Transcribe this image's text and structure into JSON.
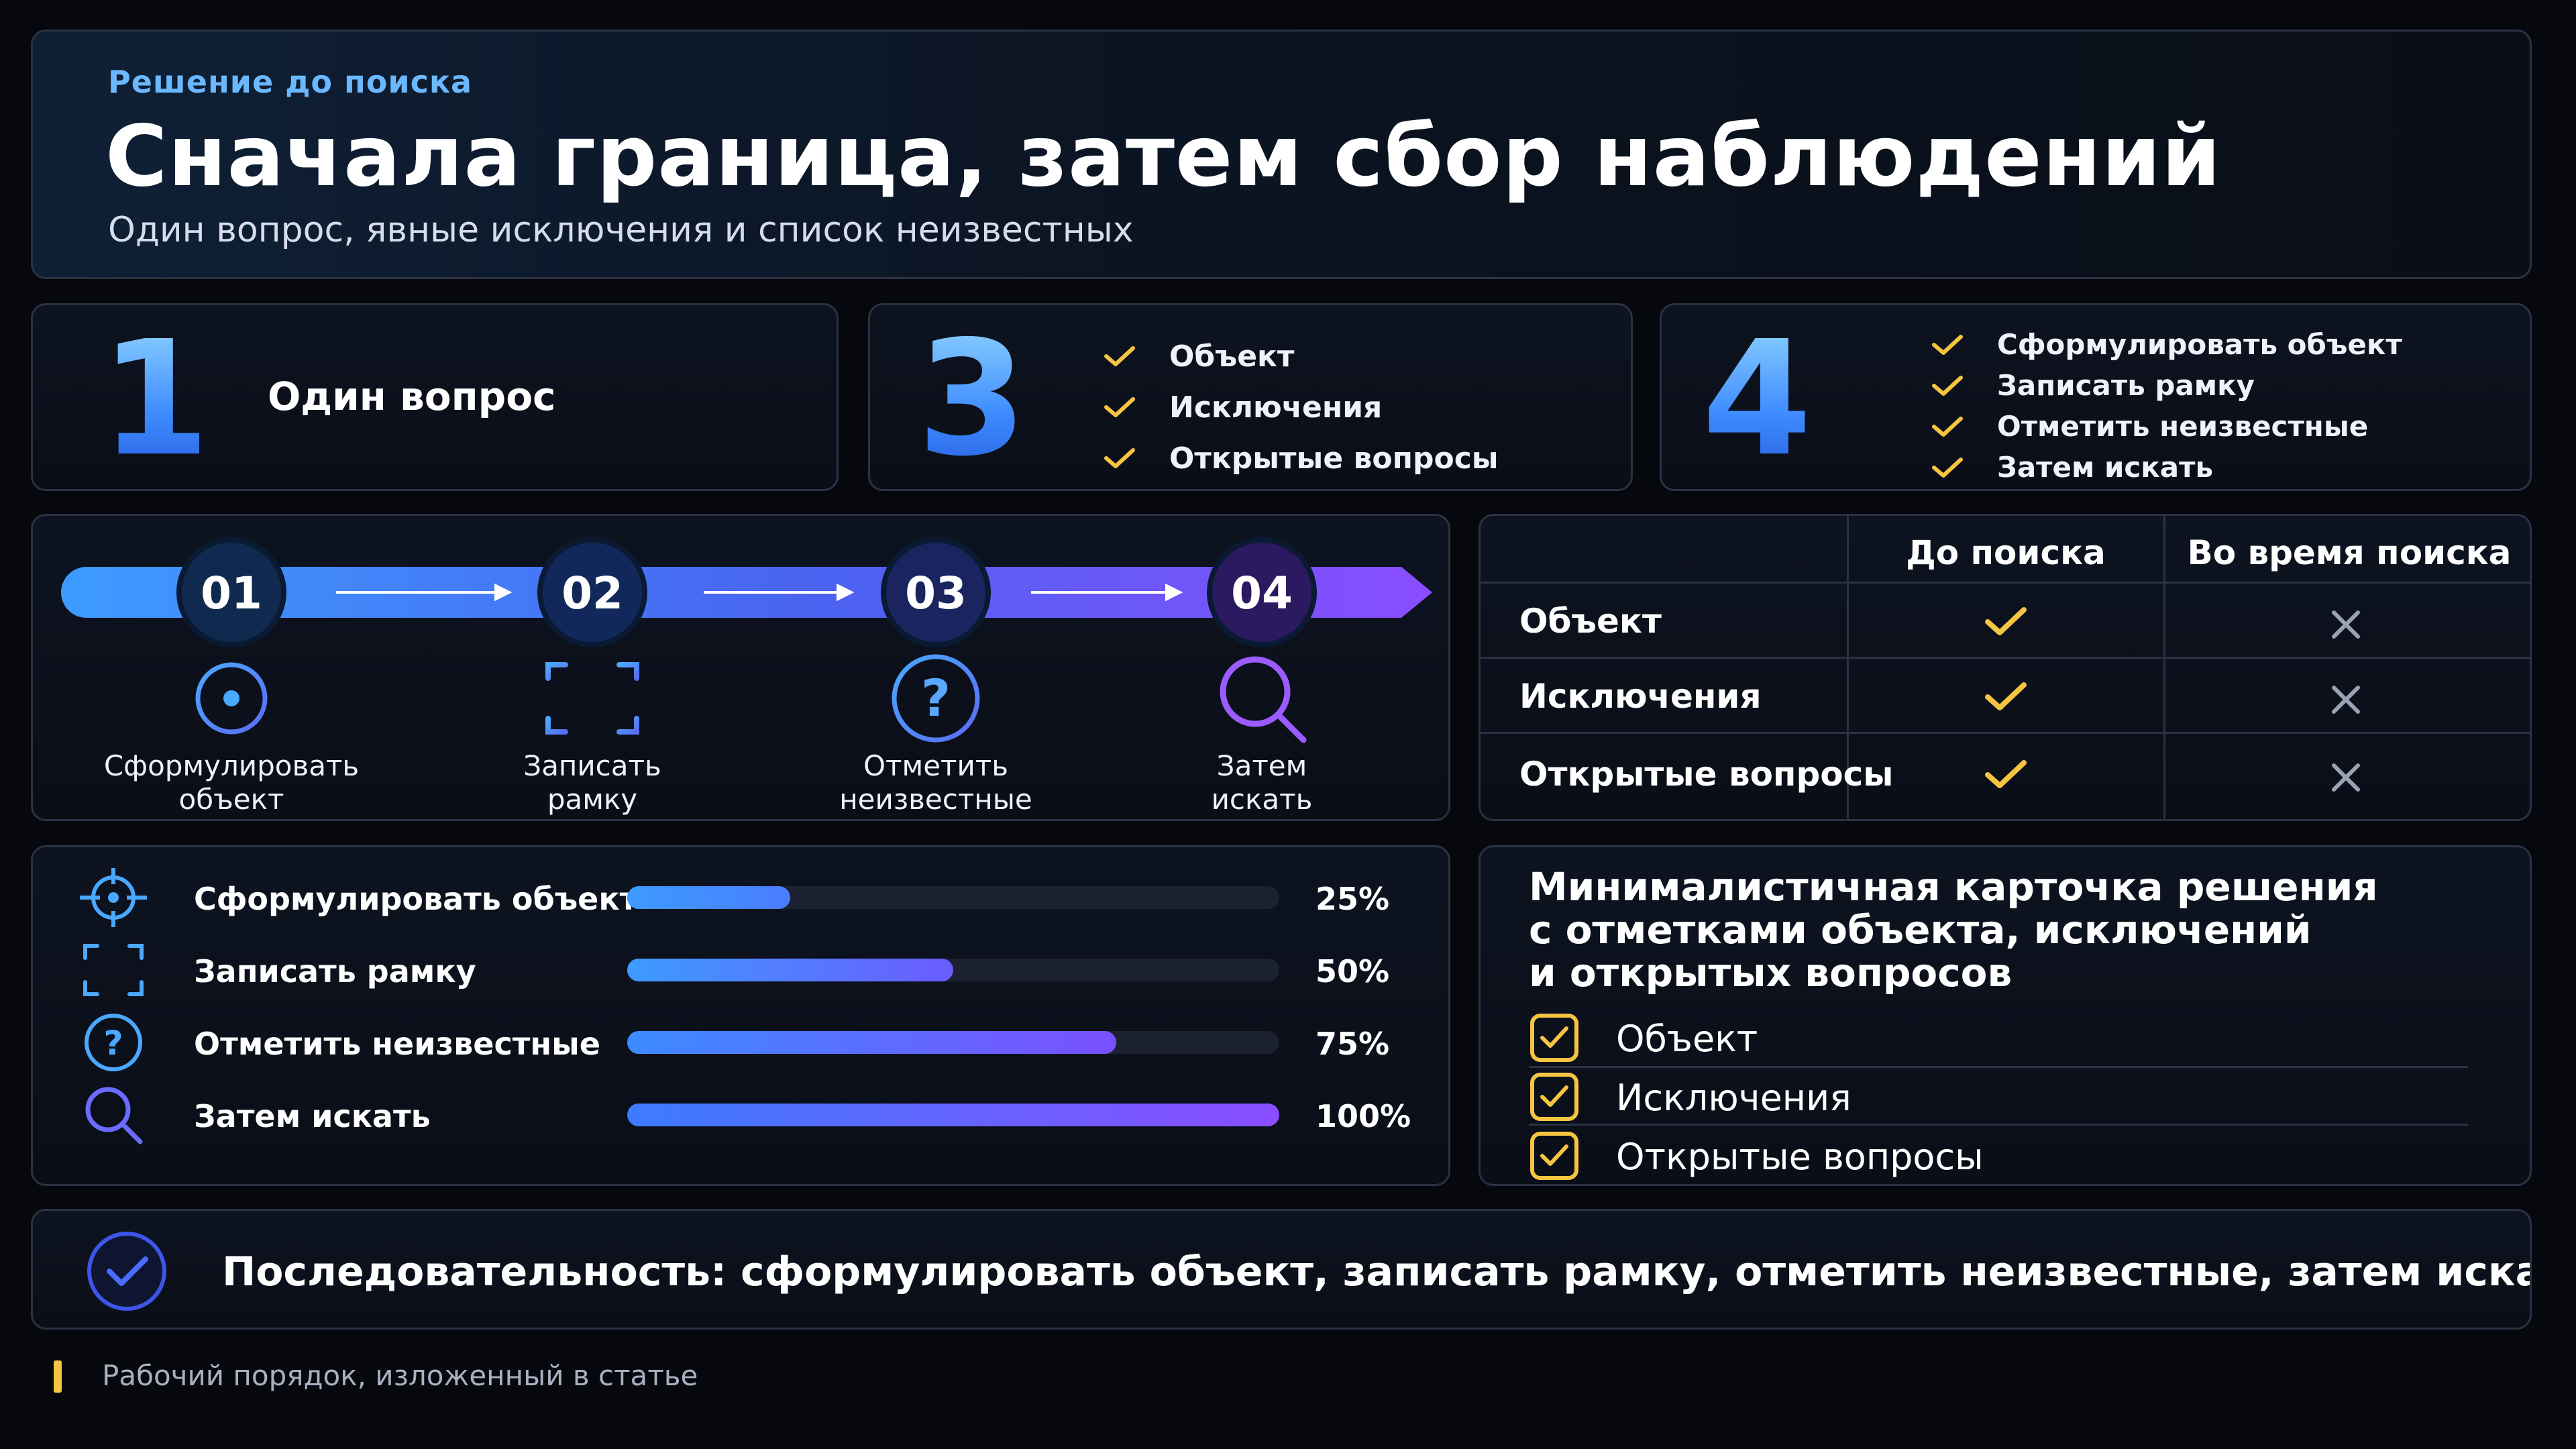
{
  "colors": {
    "accent_blue": "#3d8bff",
    "accent_purple": "#8a4dff",
    "check_yellow": "#f5c542",
    "cross_gray": "#9aa3b5"
  },
  "header": {
    "eyebrow": "Решение до поиска",
    "title": "Сначала граница, затем сбор наблюдений",
    "subtitle": "Один вопрос, явные исключения и список неизвестных"
  },
  "card_one": {
    "number": "1",
    "label": "Один вопрос"
  },
  "card_three": {
    "number": "3",
    "items": [
      "Объект",
      "Исключения",
      "Открытые вопросы"
    ]
  },
  "card_four": {
    "number": "4",
    "items": [
      "Сформулировать объект",
      "Записать рамку",
      "Отметить неизвестные",
      "Затем искать"
    ]
  },
  "steps": [
    {
      "num": "01",
      "icon": "crosshair-icon",
      "line1": "Сформулировать",
      "line2": "объект"
    },
    {
      "num": "02",
      "icon": "frame-corners-icon",
      "line1": "Записать",
      "line2": "рамку"
    },
    {
      "num": "03",
      "icon": "question-circle-icon",
      "line1": "Отметить",
      "line2": "неизвестные"
    },
    {
      "num": "04",
      "icon": "magnifier-icon",
      "line1": "Затем",
      "line2": "искать"
    }
  ],
  "table": {
    "col_before": "До поиска",
    "col_during": "Во время поиска",
    "rows": [
      {
        "label": "Объект",
        "before": "check-icon",
        "during": "cross-icon"
      },
      {
        "label": "Исключения",
        "before": "check-icon",
        "during": "cross-icon"
      },
      {
        "label": "Открытые вопросы",
        "before": "check-icon",
        "during": "cross-icon"
      }
    ]
  },
  "progress": [
    {
      "label": "Сформулировать объект",
      "value": 25,
      "display": "25%",
      "icon": "crosshair-icon"
    },
    {
      "label": "Записать рамку",
      "value": 50,
      "display": "50%",
      "icon": "frame-corners-icon"
    },
    {
      "label": "Отметить неизвестные",
      "value": 75,
      "display": "75%",
      "icon": "question-circle-icon"
    },
    {
      "label": "Затем искать",
      "value": 100,
      "display": "100%",
      "icon": "magnifier-icon"
    }
  ],
  "decision_card": {
    "title_lines": [
      "Минималистичная карточка решения",
      "с отметками объекта, исключений",
      "и открытых вопросов"
    ],
    "items": [
      "Объект",
      "Исключения",
      "Открытые вопросы"
    ]
  },
  "summary": {
    "icon": "check-circle-icon",
    "text": "Последовательность: сформулировать объект, записать рамку, отметить неизвестные, затем искать"
  },
  "caption": "Рабочий порядок, изложенный в статье"
}
